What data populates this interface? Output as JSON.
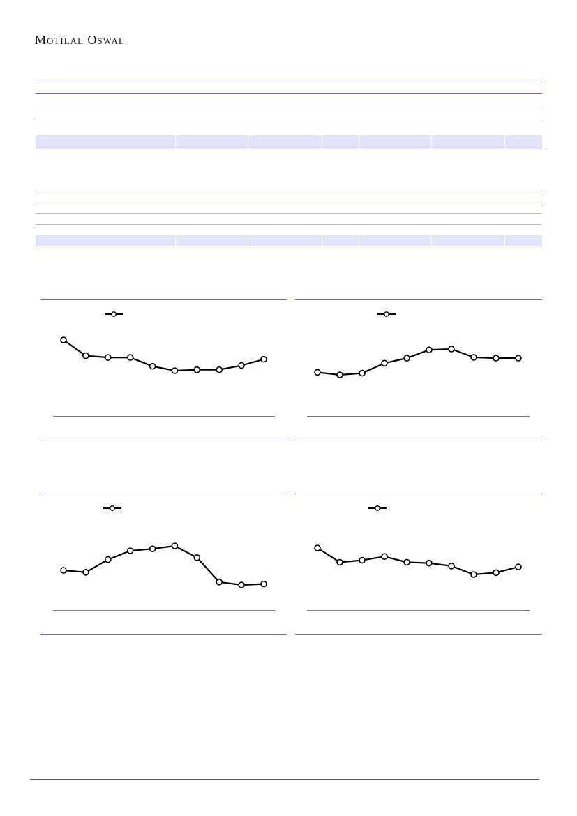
{
  "header": {
    "brand": "Motilal Oswal"
  },
  "colors": {
    "rule_blue": "#6b6bb8",
    "band_fill": "#e3e3fb",
    "series_stroke": "#000000",
    "marker_fill": "#ffffff"
  },
  "chart_data": [
    {
      "type": "line",
      "series": [
        {
          "values": [
            86,
            68,
            66,
            66,
            56,
            51,
            52,
            52,
            57,
            64
          ]
        }
      ],
      "legend": "top-left",
      "grid": false
    },
    {
      "type": "line",
      "series": [
        {
          "values": [
            45,
            42,
            44,
            56,
            62,
            72,
            73,
            63,
            62,
            62
          ]
        }
      ],
      "legend": "top-left",
      "grid": false
    },
    {
      "type": "line",
      "series": [
        {
          "values": [
            49,
            47,
            60,
            69,
            71,
            74,
            62,
            37,
            34,
            35
          ]
        }
      ],
      "legend": "top-left",
      "grid": false
    },
    {
      "type": "line",
      "series": [
        {
          "values": [
            74,
            59,
            61,
            65,
            59,
            58,
            55,
            46,
            48,
            54
          ]
        }
      ],
      "legend": "top-left",
      "grid": false
    }
  ]
}
